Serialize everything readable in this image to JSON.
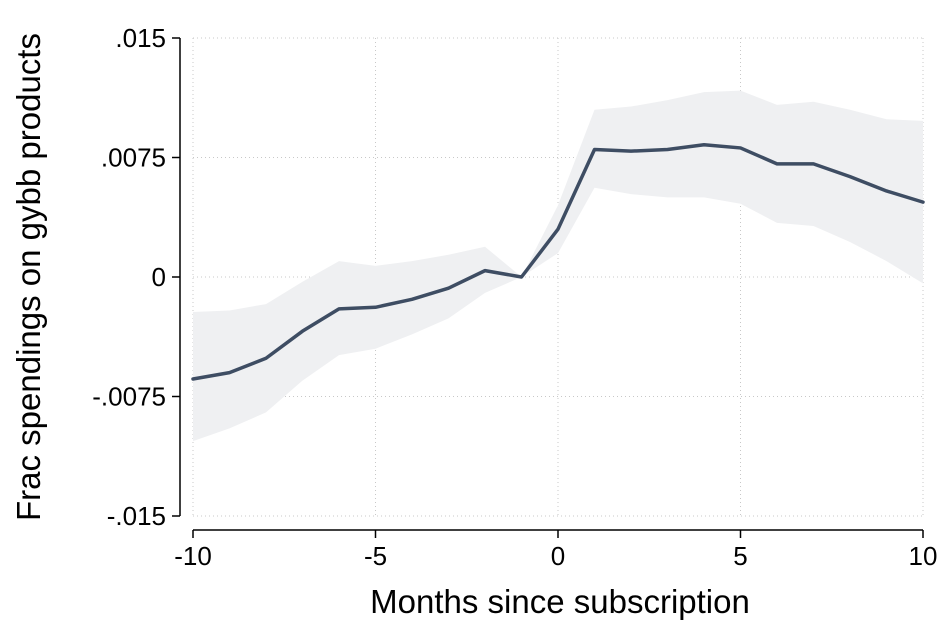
{
  "chart_data": {
    "type": "line",
    "title": "",
    "xlabel": "Months since subscription",
    "ylabel": "Frac spendings on gybb products",
    "xlim": [
      -10,
      10
    ],
    "ylim": [
      -0.015,
      0.015
    ],
    "x_ticks": [
      {
        "value": -10,
        "label": "-10"
      },
      {
        "value": -5,
        "label": "-5"
      },
      {
        "value": 0,
        "label": "0"
      },
      {
        "value": 5,
        "label": "5"
      },
      {
        "value": 10,
        "label": "10"
      }
    ],
    "y_ticks": [
      {
        "value": 0.015,
        "label": ".015"
      },
      {
        "value": 0.0075,
        "label": ".0075"
      },
      {
        "value": 0,
        "label": "0"
      },
      {
        "value": -0.0075,
        "label": "-.0075"
      },
      {
        "value": -0.015,
        "label": "-.015"
      }
    ],
    "grid": true,
    "legend": "none",
    "colors": {
      "line": "#3e4d63",
      "band": "#eff0f2",
      "grid": "#c8c8c8",
      "axis": "#000000"
    },
    "x": [
      -10,
      -9,
      -8,
      -7,
      -6,
      -5,
      -4,
      -3,
      -2,
      -1,
      0,
      1,
      2,
      3,
      4,
      5,
      6,
      7,
      8,
      9,
      10
    ],
    "series": [
      {
        "values": [
          -0.0064,
          -0.006,
          -0.0051,
          -0.0034,
          -0.002,
          -0.0019,
          -0.0014,
          -0.0007,
          0.0004,
          0.0,
          0.003,
          0.008,
          0.0079,
          0.008,
          0.0083,
          0.0081,
          0.0071,
          0.0071,
          0.0063,
          0.0054,
          0.0047
        ],
        "ci_upper": [
          -0.0022,
          -0.0021,
          -0.0017,
          -0.0003,
          0.001,
          0.0007,
          0.001,
          0.0014,
          0.0019,
          0.0,
          0.0045,
          0.0105,
          0.0107,
          0.0111,
          0.0116,
          0.0117,
          0.0108,
          0.011,
          0.0105,
          0.0099,
          0.0098
        ],
        "ci_lower": [
          -0.0103,
          -0.0095,
          -0.0085,
          -0.0065,
          -0.0049,
          -0.0045,
          -0.0036,
          -0.0026,
          -0.001,
          0.0,
          0.0015,
          0.0056,
          0.0052,
          0.005,
          0.005,
          0.0046,
          0.0034,
          0.0032,
          0.0022,
          0.001,
          -0.0004
        ]
      }
    ]
  }
}
